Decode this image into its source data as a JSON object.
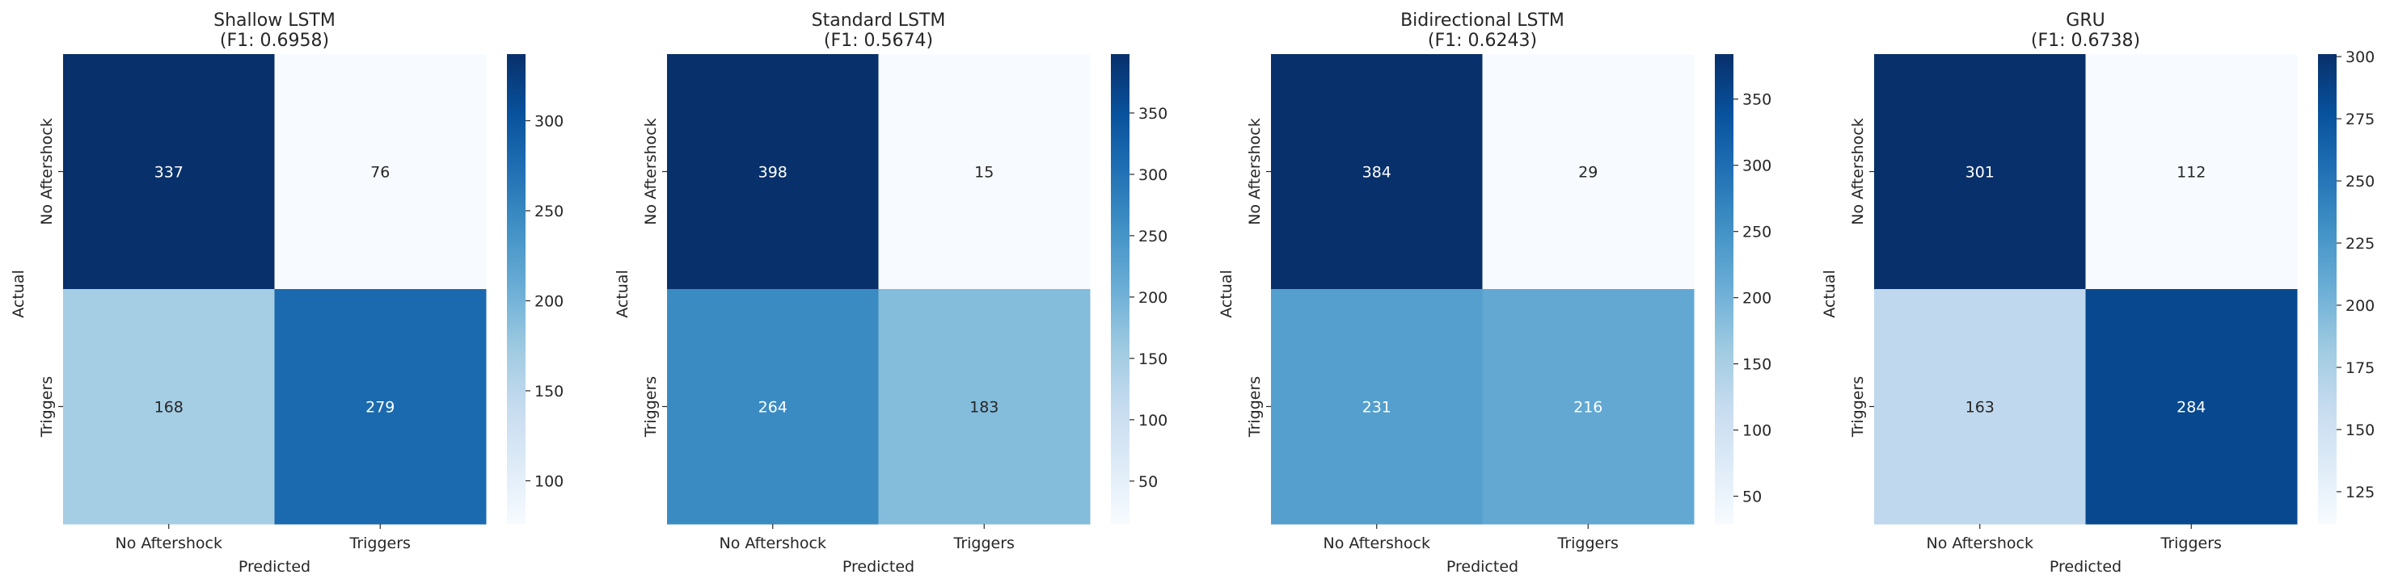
{
  "chart_data": [
    {
      "type": "heatmap",
      "title": "Shallow LSTM",
      "subtitle": "(F1: 0.6958)",
      "xlabel": "Predicted",
      "ylabel": "Actual",
      "x_categories": [
        "No Aftershock",
        "Triggers"
      ],
      "y_categories": [
        "No Aftershock",
        "Triggers"
      ],
      "values": [
        [
          337,
          76
        ],
        [
          168,
          279
        ]
      ],
      "colorbar": {
        "vmin": 76,
        "vmax": 337,
        "ticks": [
          100,
          150,
          200,
          250,
          300
        ]
      }
    },
    {
      "type": "heatmap",
      "title": "Standard LSTM",
      "subtitle": "(F1: 0.5674)",
      "xlabel": "Predicted",
      "ylabel": "Actual",
      "x_categories": [
        "No Aftershock",
        "Triggers"
      ],
      "y_categories": [
        "No Aftershock",
        "Triggers"
      ],
      "values": [
        [
          398,
          15
        ],
        [
          264,
          183
        ]
      ],
      "colorbar": {
        "vmin": 15,
        "vmax": 398,
        "ticks": [
          50,
          100,
          150,
          200,
          250,
          300,
          350
        ]
      }
    },
    {
      "type": "heatmap",
      "title": "Bidirectional LSTM",
      "subtitle": "(F1: 0.6243)",
      "xlabel": "Predicted",
      "ylabel": "Actual",
      "x_categories": [
        "No Aftershock",
        "Triggers"
      ],
      "y_categories": [
        "No Aftershock",
        "Triggers"
      ],
      "values": [
        [
          384,
          29
        ],
        [
          231,
          216
        ]
      ],
      "colorbar": {
        "vmin": 29,
        "vmax": 384,
        "ticks": [
          50,
          100,
          150,
          200,
          250,
          300,
          350
        ]
      }
    },
    {
      "type": "heatmap",
      "title": "GRU",
      "subtitle": "(F1: 0.6738)",
      "xlabel": "Predicted",
      "ylabel": "Actual",
      "x_categories": [
        "No Aftershock",
        "Triggers"
      ],
      "y_categories": [
        "No Aftershock",
        "Triggers"
      ],
      "values": [
        [
          301,
          112
        ],
        [
          163,
          284
        ]
      ],
      "colorbar": {
        "vmin": 112,
        "vmax": 301,
        "ticks": [
          125,
          150,
          175,
          200,
          225,
          250,
          275,
          300
        ]
      }
    }
  ],
  "colors": {
    "colormap": "Blues",
    "stops": [
      "#f7fbff",
      "#deebf7",
      "#c6dbef",
      "#9ecae1",
      "#6baed6",
      "#4292c6",
      "#2171b5",
      "#08519c",
      "#08306b"
    ],
    "text_dark": "#262626",
    "text_light": "#ffffff"
  }
}
